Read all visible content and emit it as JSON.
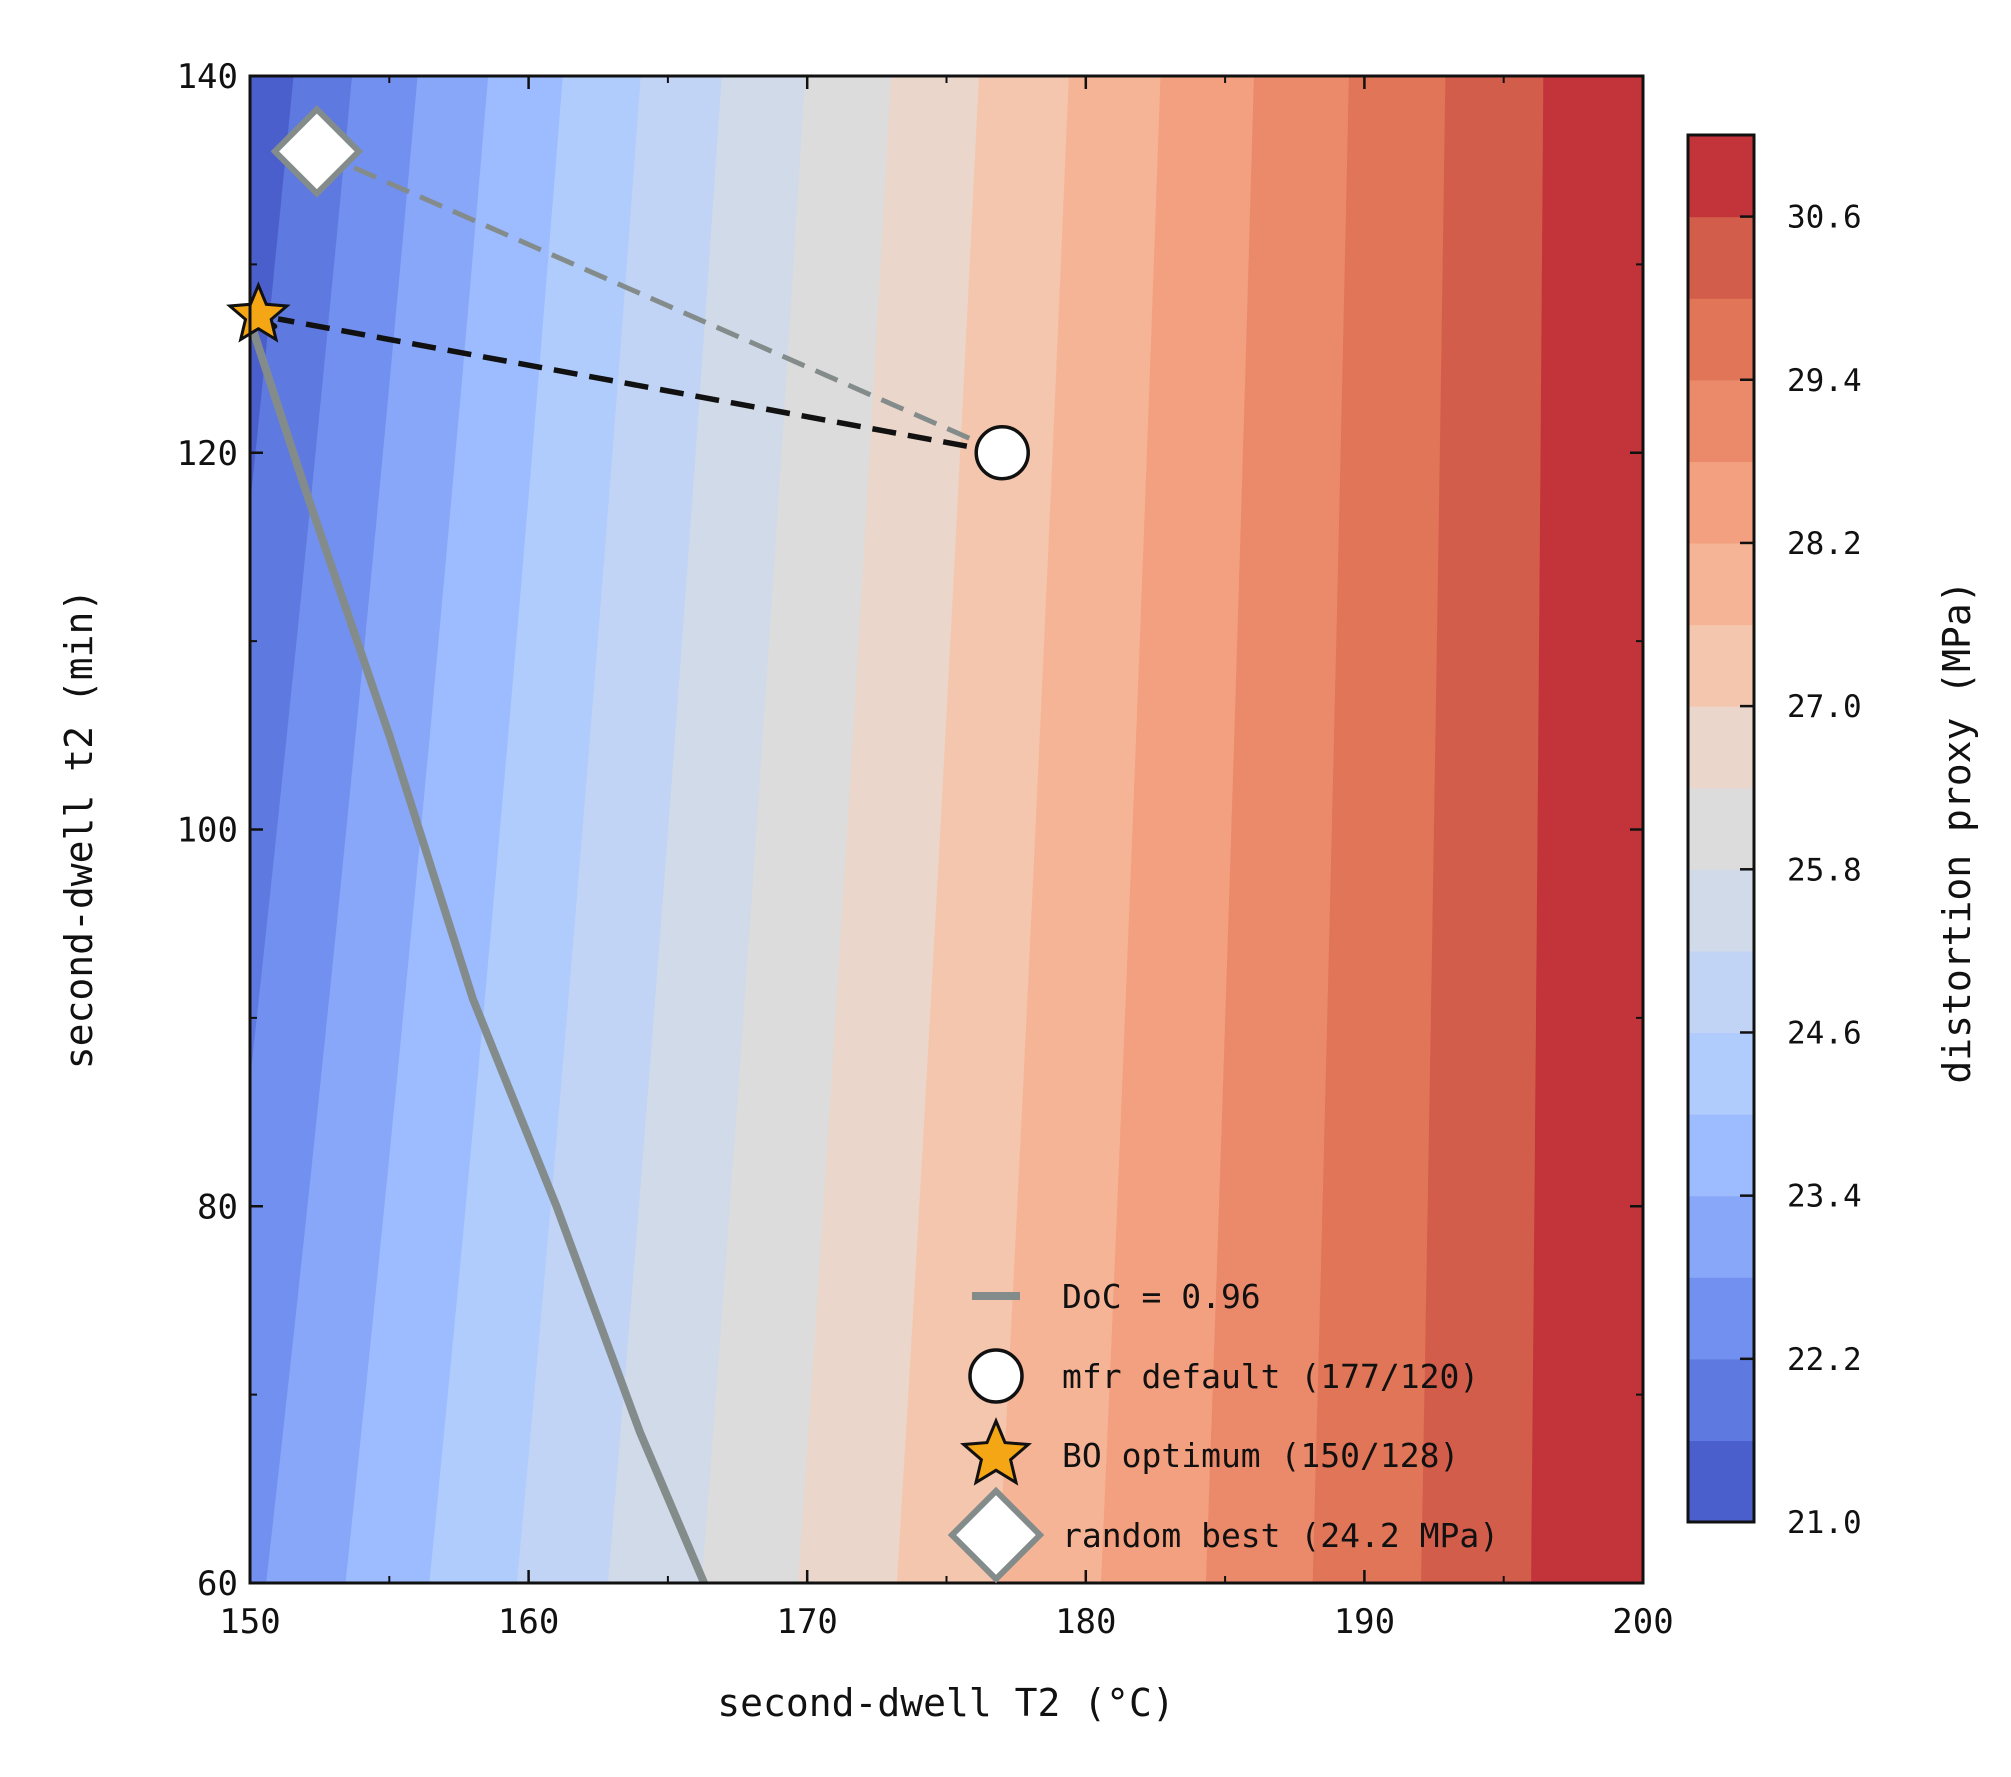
{
  "chart_data": {
    "type": "contour",
    "xlabel": "second-dwell T2 (°C)",
    "ylabel": "second-dwell t2 (min)",
    "colorbar_label": "distortion proxy (MPa)",
    "xlim": [
      150,
      200
    ],
    "ylim": [
      60,
      140
    ],
    "x_ticks": [
      "150",
      "160",
      "170",
      "180",
      "190",
      "200"
    ],
    "y_ticks": [
      "60",
      "80",
      "100",
      "120",
      "140"
    ],
    "colorbar_range": [
      21.0,
      31.2
    ],
    "colorbar_ticks": [
      "21.0",
      "22.2",
      "23.4",
      "24.6",
      "25.8",
      "27.0",
      "28.2",
      "29.4",
      "30.6"
    ],
    "contour_levels": [
      21.0,
      21.6,
      22.2,
      22.8,
      23.4,
      24.0,
      24.6,
      25.2,
      25.8,
      26.4,
      27.0,
      27.6,
      28.2,
      28.8,
      29.4,
      30.0,
      30.6,
      31.2
    ],
    "level_colors": [
      "#4b5fcc",
      "#5e7ae0",
      "#7290ef",
      "#88a7f9",
      "#9dbcff",
      "#b0ccfc",
      "#c1d4f5",
      "#d0dae9",
      "#dcdcdc",
      "#ebd6cb",
      "#f4c6ad",
      "#f6b496",
      "#f2a07f",
      "#ea8a6b",
      "#e07558",
      "#d35d4b",
      "#c3343a"
    ],
    "series": [
      {
        "name": "DoC = 0.96",
        "type": "line",
        "color": "#848c8b",
        "x": [
          150,
          152,
          155,
          158,
          161,
          164,
          166.3
        ],
        "y": [
          127,
          118,
          105,
          91,
          80,
          68,
          60
        ]
      },
      {
        "name": "mfr default (177/120)",
        "type": "point",
        "marker": "circle",
        "x": 177,
        "y": 120
      },
      {
        "name": "BO optimum (150/128)",
        "type": "point",
        "marker": "star",
        "x": 150.3,
        "y": 127.3,
        "color": "#f5a615"
      },
      {
        "name": "random best (24.2 MPa)",
        "type": "point",
        "marker": "diamond",
        "x": 152.4,
        "y": 136
      }
    ],
    "arrows": [
      {
        "from": [
          177,
          120
        ],
        "to": [
          152.4,
          136
        ],
        "style": "dashed",
        "color": "#848c8b"
      },
      {
        "from": [
          177,
          120
        ],
        "to": [
          150.3,
          127.3
        ],
        "style": "dashed",
        "color": "#111111"
      }
    ],
    "legend": {
      "placement": "lower-right"
    }
  }
}
